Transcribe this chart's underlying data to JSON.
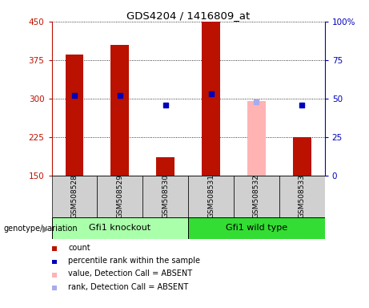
{
  "title": "GDS4204 / 1416809_at",
  "samples": [
    "GSM508528",
    "GSM508529",
    "GSM508530",
    "GSM508531",
    "GSM508532",
    "GSM508533"
  ],
  "count_values": [
    385,
    405,
    185,
    450,
    null,
    225
  ],
  "count_absent_values": [
    null,
    null,
    null,
    null,
    295,
    null
  ],
  "percentile_values": [
    52,
    52,
    46,
    53,
    null,
    46
  ],
  "percentile_absent_values": [
    null,
    null,
    null,
    null,
    48,
    null
  ],
  "ylim": [
    150,
    450
  ],
  "y2lim": [
    0,
    100
  ],
  "yticks": [
    150,
    225,
    300,
    375,
    450
  ],
  "y2ticks": [
    0,
    25,
    50,
    75,
    100
  ],
  "bar_color": "#bb1100",
  "bar_absent_color": "#ffb3b3",
  "dot_color": "#0000bb",
  "dot_absent_color": "#aaaaee",
  "left_tick_color": "#bb1100",
  "right_tick_color": "#0000bb",
  "groups": [
    {
      "label": "Gfi1 knockout",
      "start": 0,
      "end": 3
    },
    {
      "label": "Gfi1 wild type",
      "start": 3,
      "end": 6
    }
  ],
  "group_colors": [
    "#aaffaa",
    "#33dd33"
  ],
  "legend_items": [
    {
      "label": "count",
      "color": "#bb1100"
    },
    {
      "label": "percentile rank within the sample",
      "color": "#0000bb"
    },
    {
      "label": "value, Detection Call = ABSENT",
      "color": "#ffb3b3"
    },
    {
      "label": "rank, Detection Call = ABSENT",
      "color": "#aaaaee"
    }
  ],
  "genotype_label": "genotype/variation",
  "bar_width": 0.4,
  "bar_bottom": 150
}
